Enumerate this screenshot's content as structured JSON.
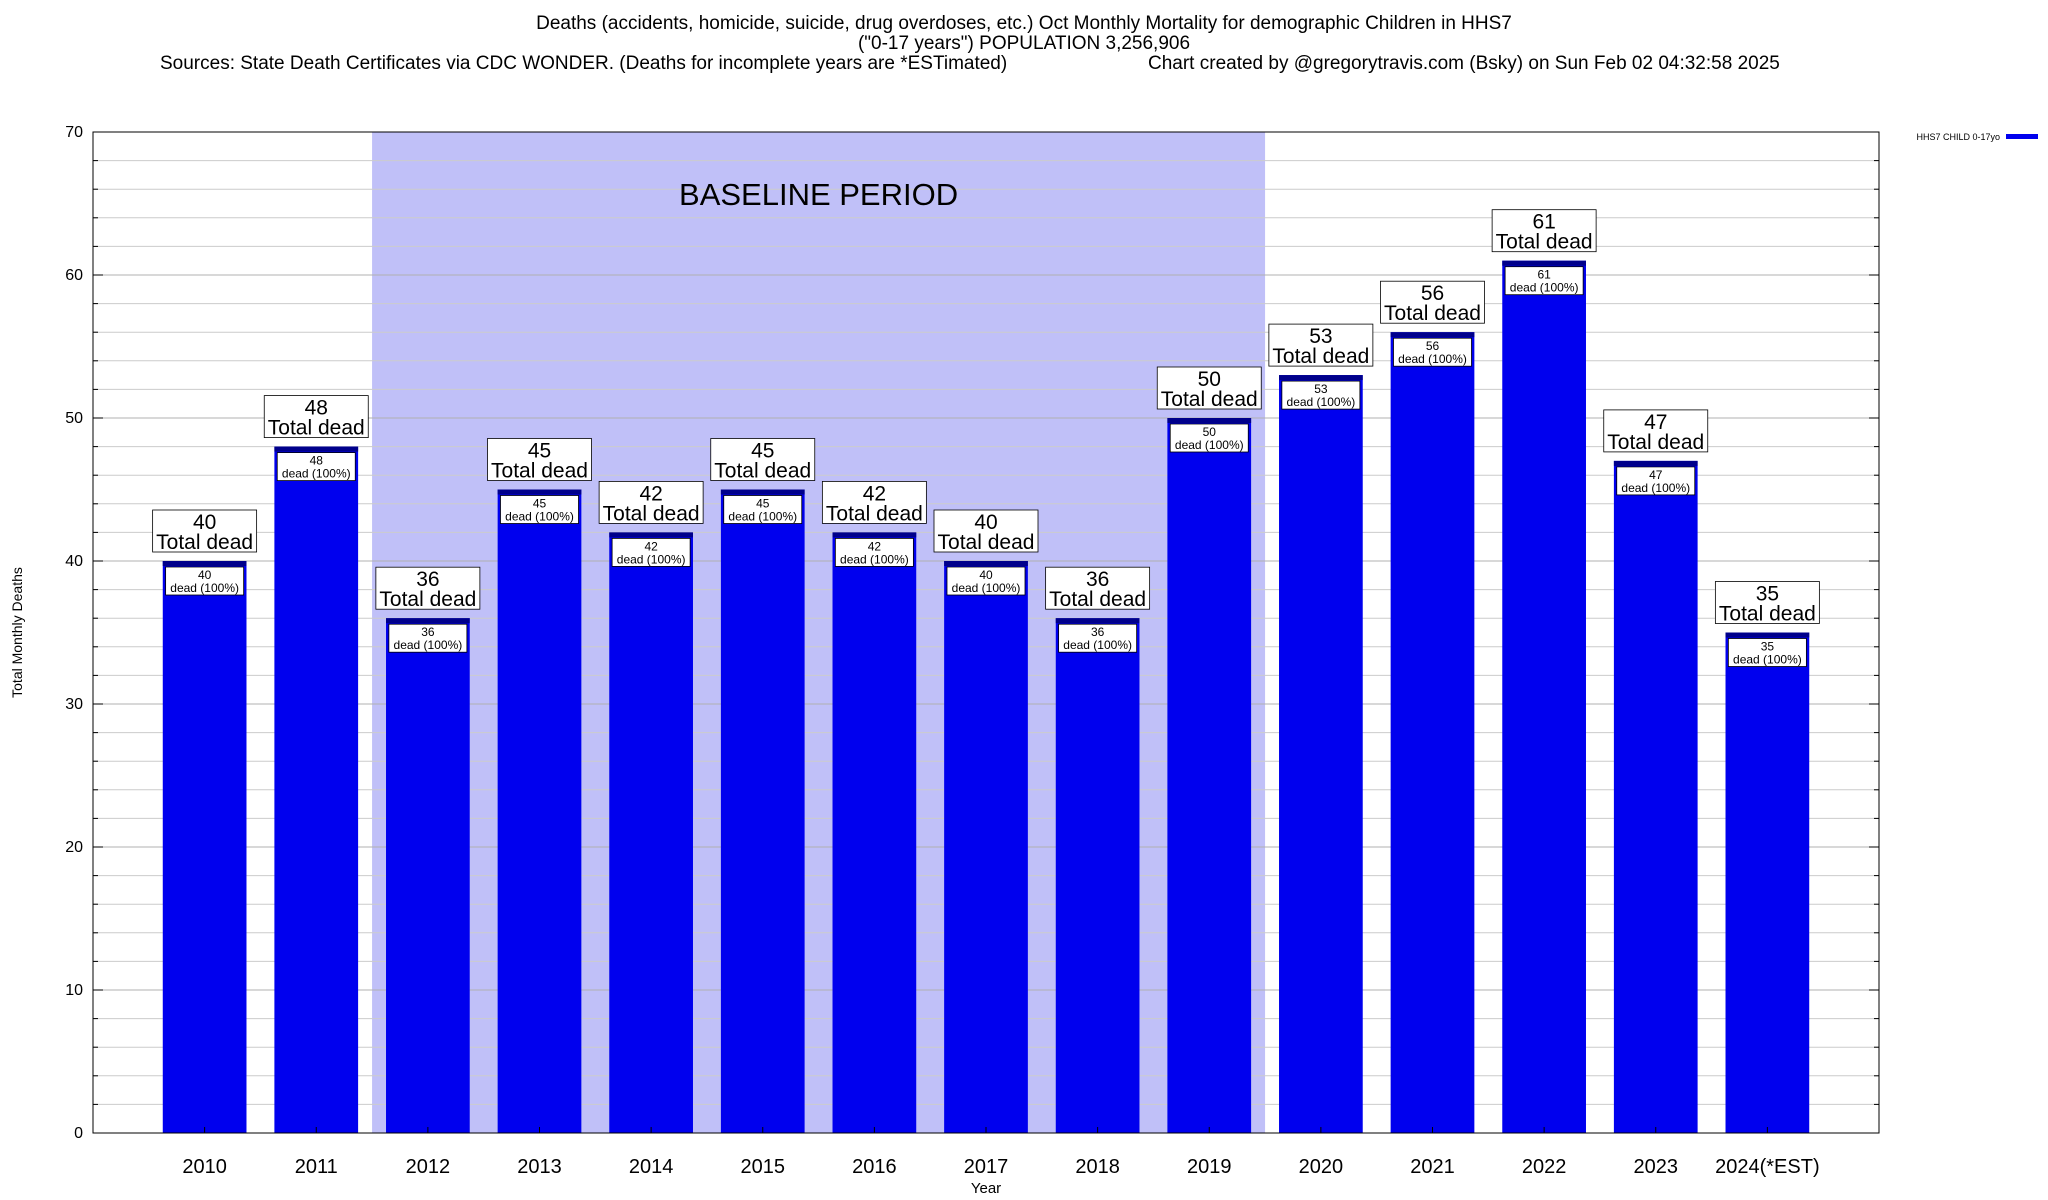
{
  "chart_data": {
    "type": "bar",
    "title": "Deaths (accidents, homicide, suicide, drug overdoses, etc.) Oct Monthly Mortality for demographic Children in HHS7",
    "subtitle": "(\"0-17 years\") POPULATION 3,256,906",
    "source": "Sources: State Death Certificates via CDC WONDER. (Deaths for incomplete years are *ESTimated)",
    "credit": "Chart created by @gregorytravis.com (Bsky) on Sun Feb 02 04:32:58 2025",
    "xlabel": "Year",
    "ylabel": "Total Monthly Deaths",
    "ylim": [
      0,
      70
    ],
    "yticks": [
      0,
      10,
      20,
      30,
      40,
      50,
      60,
      70
    ],
    "grid": true,
    "legend_position": "top-right",
    "categories": [
      "2010",
      "2011",
      "2012",
      "2013",
      "2014",
      "2015",
      "2016",
      "2017",
      "2018",
      "2019",
      "2020",
      "2021",
      "2022",
      "2023",
      "2024(*EST)"
    ],
    "series": [
      {
        "name": "HHS7 CHILD 0-17yo",
        "color": "#0000ee",
        "values": [
          40,
          48,
          36,
          45,
          42,
          45,
          42,
          40,
          36,
          50,
          53,
          56,
          61,
          47,
          35
        ]
      }
    ],
    "total_label_suffix": "Total dead",
    "inner_label_suffix": "dead (100%)",
    "baseline": {
      "label": "BASELINE PERIOD",
      "start": "2012",
      "end": "2019",
      "color": "#c0c0f8"
    }
  }
}
